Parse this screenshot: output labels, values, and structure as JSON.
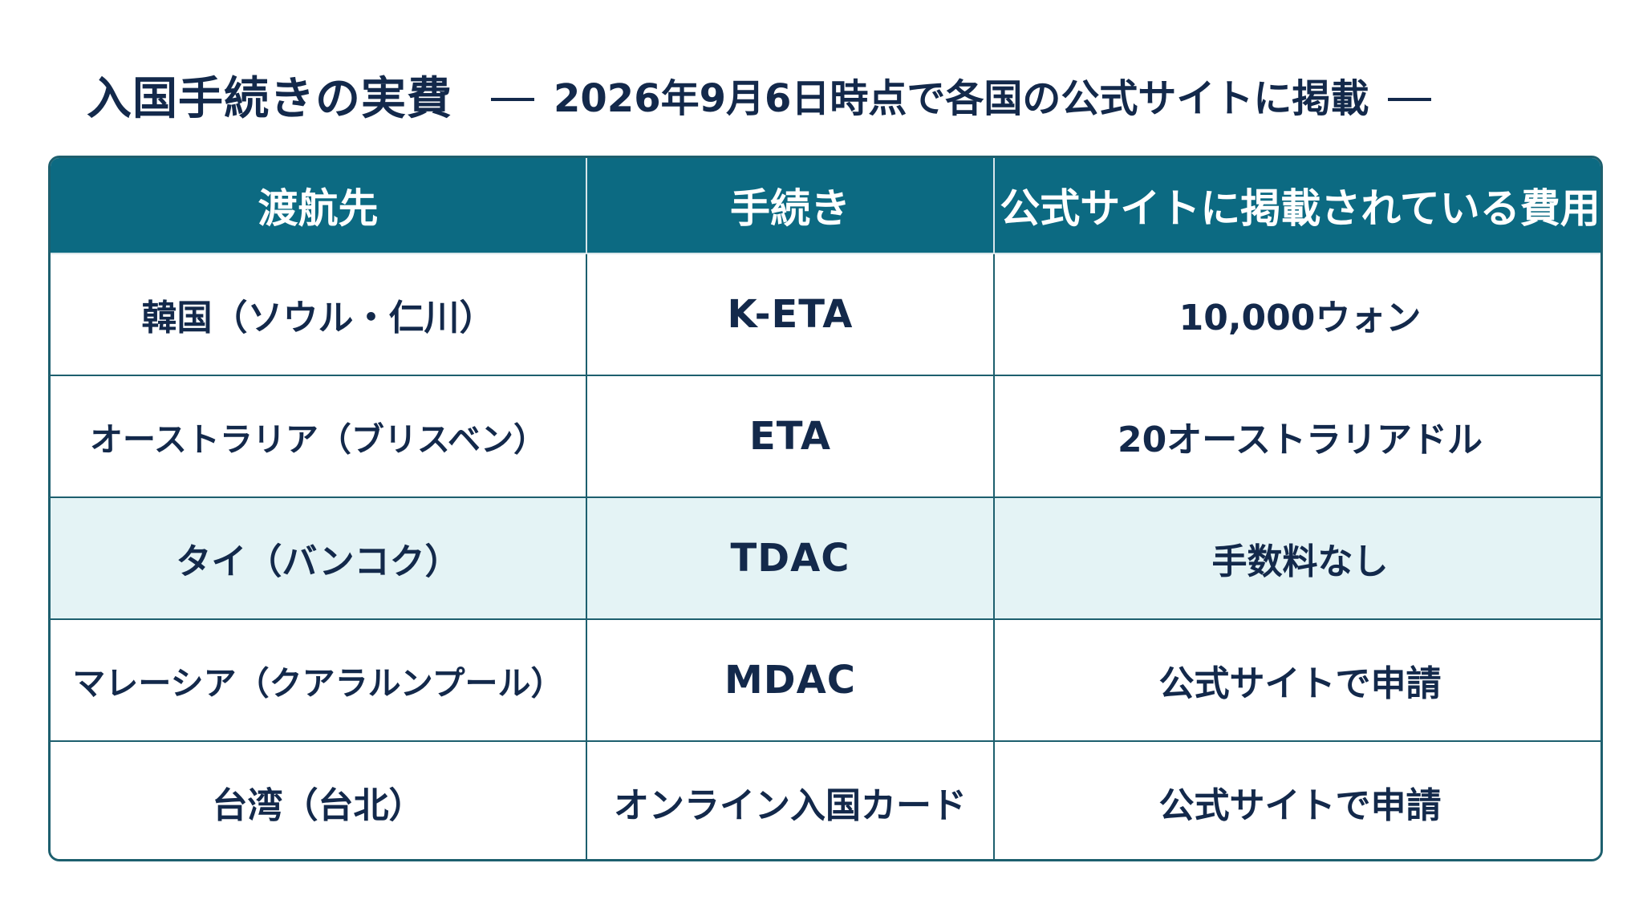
{
  "title": {
    "main": "入国手続きの実費",
    "subtitle": "2026年9月6日時点で各国の公式サイトに掲載"
  },
  "table": {
    "headers": [
      "渡航先",
      "手続き",
      "公式サイトに掲載されている費用"
    ],
    "rows": [
      {
        "destination": "韓国（ソウル・仁川）",
        "procedure": "K-ETA",
        "fee": "10,000ウォン"
      },
      {
        "destination": "オーストラリア（ブリスベン）",
        "procedure": "ETA",
        "fee": "20オーストラリアドル"
      },
      {
        "destination": "タイ（バンコク）",
        "procedure": "TDAC",
        "fee": "手数料なし"
      },
      {
        "destination": "マレーシア（クアラルンプール）",
        "procedure": "MDAC",
        "fee": "公式サイトで申請"
      },
      {
        "destination": "台湾（台北）",
        "procedure": "オンライン入国カード",
        "fee": "公式サイトで申請"
      }
    ]
  },
  "colors": {
    "header_bg": "#0c6a82",
    "highlight_row_bg": "#e4f3f5",
    "text": "#13294b",
    "border": "#1d5f6e"
  }
}
